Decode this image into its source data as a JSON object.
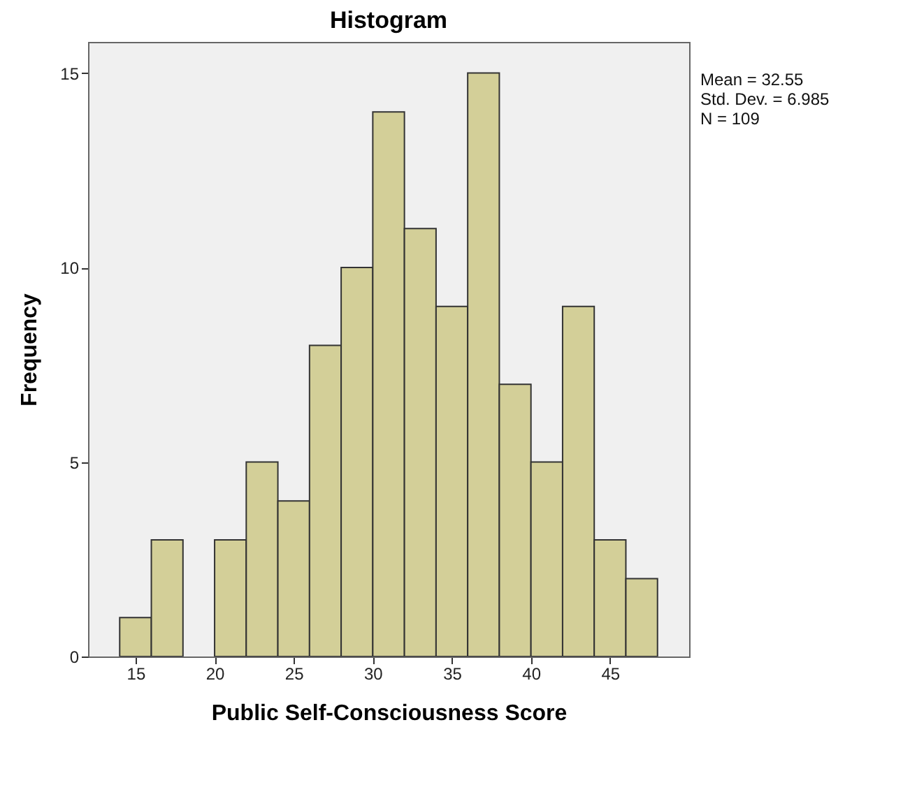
{
  "chart_data": {
    "type": "histogram",
    "title": "Histogram",
    "xlabel": "Public Self-Consciousness Score",
    "ylabel": "Frequency",
    "bins": [
      14,
      16,
      18,
      20,
      22,
      24,
      26,
      28,
      30,
      32,
      34,
      36,
      38,
      40,
      42,
      44,
      46,
      48
    ],
    "values": [
      1,
      3,
      0,
      3,
      5,
      4,
      8,
      10,
      14,
      11,
      9,
      15,
      7,
      5,
      9,
      3,
      2
    ],
    "color": "#d3cf98",
    "xlim": [
      12,
      50
    ],
    "xticks": [
      15,
      20,
      25,
      30,
      35,
      40,
      45
    ],
    "ylim": [
      0,
      15.8
    ],
    "yticks": [
      0,
      5,
      10,
      15
    ],
    "grid": false,
    "annotations": [
      "Mean = 32.55",
      "Std. Dev. = 6.985",
      "N = 109"
    ]
  }
}
